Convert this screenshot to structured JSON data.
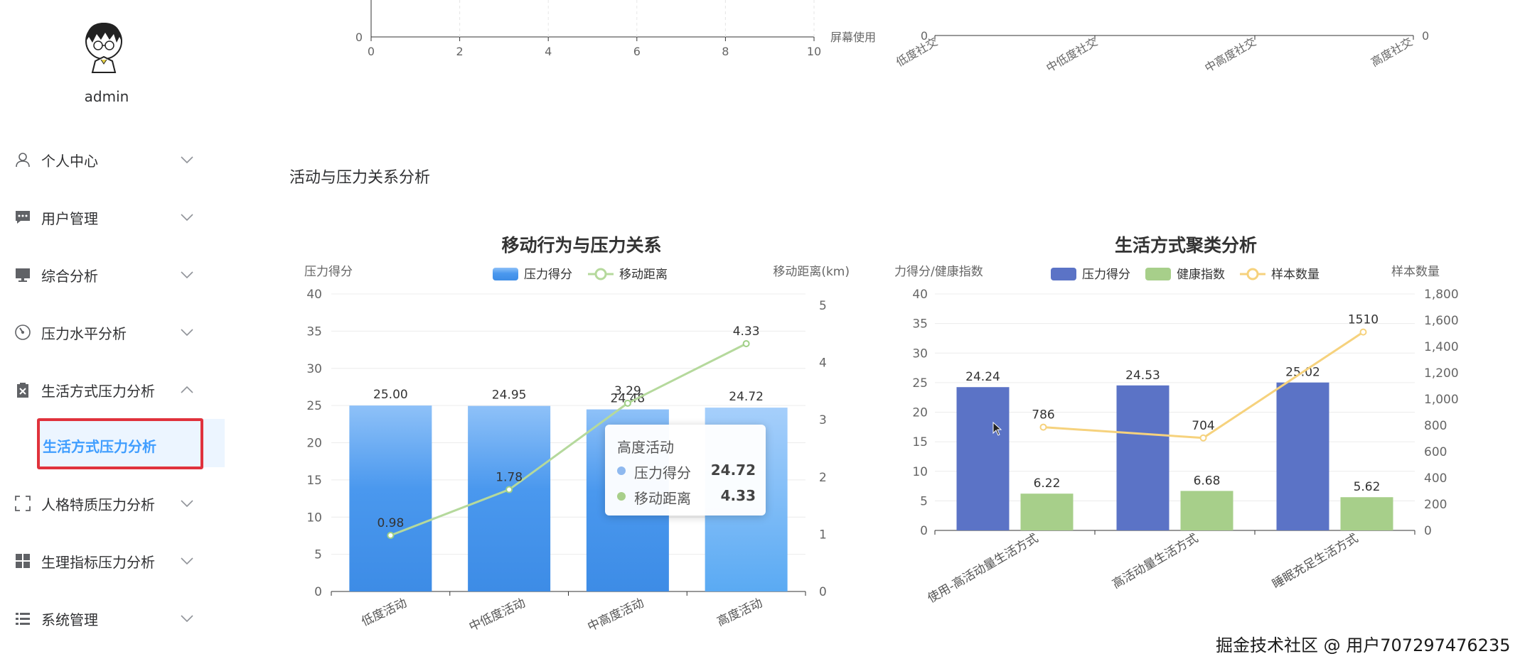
{
  "sidebar": {
    "username": "admin",
    "items": [
      {
        "label": "个人中心",
        "icon": "user-icon",
        "expanded": false
      },
      {
        "label": "用户管理",
        "icon": "chat-icon",
        "expanded": false
      },
      {
        "label": "综合分析",
        "icon": "monitor-icon",
        "expanded": false
      },
      {
        "label": "压力水平分析",
        "icon": "gauge-icon",
        "expanded": false
      },
      {
        "label": "生活方式压力分析",
        "icon": "clipboard-icon",
        "expanded": true
      },
      {
        "label": "人格特质压力分析",
        "icon": "fullscreen-icon",
        "expanded": false
      },
      {
        "label": "生理指标压力分析",
        "icon": "grid-icon",
        "expanded": false
      },
      {
        "label": "系统管理",
        "icon": "list-icon",
        "expanded": false
      }
    ],
    "active_submenu": "生活方式压力分析"
  },
  "top_partial": {
    "left_x_ticks": [
      "0",
      "2",
      "4",
      "6",
      "8",
      "10"
    ],
    "left_y_tick": "0",
    "left_x_axis_name": "屏幕使用",
    "right_y_tick_left": "0",
    "right_y_tick_right": "0",
    "right_categories": [
      "低度社交",
      "中低度社交",
      "中高度社交",
      "高度社交"
    ]
  },
  "section_title": "活动与压力关系分析",
  "chart_data": [
    {
      "type": "bar",
      "title": "移动行为与压力关系",
      "categories": [
        "低度活动",
        "中低度活动",
        "中高度活动",
        "高度活动"
      ],
      "y_left_name": "压力得分",
      "y_right_name": "移动距离(km)",
      "ylim_left": [
        0,
        40
      ],
      "ylim_right": [
        0,
        5
      ],
      "y_left_ticks": [
        "0",
        "5",
        "10",
        "15",
        "20",
        "25",
        "30",
        "35",
        "40"
      ],
      "y_right_ticks": [
        "0",
        "1",
        "2",
        "3",
        "4",
        "5"
      ],
      "legend": [
        "压力得分",
        "移动距离"
      ],
      "legend_position": "top-center",
      "series": [
        {
          "name": "压力得分",
          "type": "bar",
          "axis": "left",
          "values": [
            25.0,
            24.95,
            24.48,
            24.72
          ],
          "labels": [
            "25.00",
            "24.95",
            "24.48",
            "24.72"
          ],
          "color": "#4a90e2"
        },
        {
          "name": "移动距离",
          "type": "line",
          "axis": "right",
          "values": [
            0.98,
            1.78,
            3.29,
            4.33
          ],
          "labels": [
            "0.98",
            "1.78",
            "3.29",
            "4.33"
          ],
          "color": "#b5d99c"
        }
      ],
      "tooltip": {
        "title": "高度活动",
        "rows": [
          {
            "name": "压力得分",
            "value": "24.72",
            "color": "#8fb9ef"
          },
          {
            "name": "移动距离",
            "value": "4.33",
            "color": "#a8cf8a"
          }
        ]
      }
    },
    {
      "type": "bar",
      "title": "生活方式聚类分析",
      "categories": [
        "使用-高活动量生活方式",
        "高活动量生活方式",
        "睡眠充足生活方式"
      ],
      "y_left_name": "力得分/健康指数",
      "y_right_name": "样本数量",
      "ylim_left": [
        0,
        40
      ],
      "ylim_right": [
        0,
        1800
      ],
      "y_left_ticks": [
        "0",
        "5",
        "10",
        "15",
        "20",
        "25",
        "30",
        "35",
        "40"
      ],
      "y_right_ticks": [
        "0",
        "200",
        "400",
        "600",
        "800",
        "1,000",
        "1,200",
        "1,400",
        "1,600",
        "1,800"
      ],
      "legend": [
        "压力得分",
        "健康指数",
        "样本数量"
      ],
      "legend_position": "top-center",
      "series": [
        {
          "name": "压力得分",
          "type": "bar",
          "axis": "left",
          "values": [
            24.24,
            24.53,
            25.02
          ],
          "labels": [
            "24.24",
            "24.53",
            "25.02"
          ],
          "color": "#5b73c6"
        },
        {
          "name": "健康指数",
          "type": "bar",
          "axis": "left",
          "values": [
            6.22,
            6.68,
            5.62
          ],
          "labels": [
            "6.22",
            "6.68",
            "5.62"
          ],
          "color": "#a7cf8a"
        },
        {
          "name": "样本数量",
          "type": "line",
          "axis": "right",
          "values": [
            786,
            704,
            1510
          ],
          "labels": [
            "786",
            "704",
            "1510"
          ],
          "color": "#f6d27d"
        }
      ]
    }
  ],
  "watermark": "掘金技术社区 @ 用户707297476235"
}
